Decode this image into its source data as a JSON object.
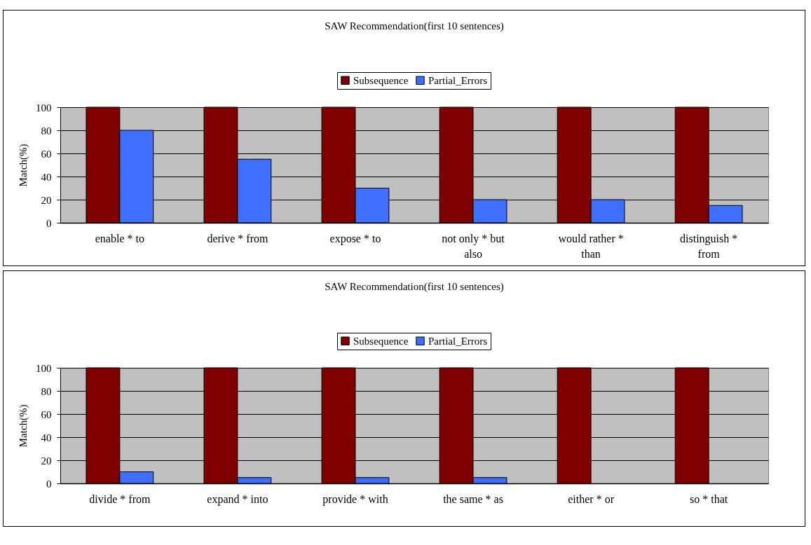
{
  "chart_data": [
    {
      "type": "bar",
      "title": "SAW  Recommendation(first 10 sentences)",
      "ylabel": "Match(%)",
      "categories": [
        "enable * to",
        "derive * from",
        "expose * to",
        "not only * but also",
        "would rather * than",
        "distinguish * from"
      ],
      "series": [
        {
          "name": "Subsequence",
          "color": "#800000",
          "values": [
            100,
            100,
            100,
            100,
            100,
            100
          ]
        },
        {
          "name": "Partial_Errors",
          "color": "#3f6fff",
          "values": [
            80,
            55,
            30,
            20,
            20,
            15
          ]
        }
      ],
      "ylim": [
        0,
        100
      ],
      "yticks": [
        0,
        20,
        40,
        60,
        80,
        100
      ],
      "grid": "y",
      "legend": "top"
    },
    {
      "type": "bar",
      "title": "SAW  Recommendation(first 10 sentences)",
      "ylabel": "Match(%)",
      "categories": [
        "divide * from",
        "expand * into",
        "provide * with",
        "the same * as",
        "either * or",
        "so * that"
      ],
      "series": [
        {
          "name": "Subsequence",
          "color": "#800000",
          "values": [
            100,
            100,
            100,
            100,
            100,
            100
          ]
        },
        {
          "name": "Partial_Errors",
          "color": "#3f6fff",
          "values": [
            10,
            5,
            5,
            5,
            null,
            null
          ]
        }
      ],
      "ylim": [
        0,
        100
      ],
      "yticks": [
        0,
        20,
        40,
        60,
        80,
        100
      ],
      "grid": "y",
      "legend": "top"
    }
  ]
}
